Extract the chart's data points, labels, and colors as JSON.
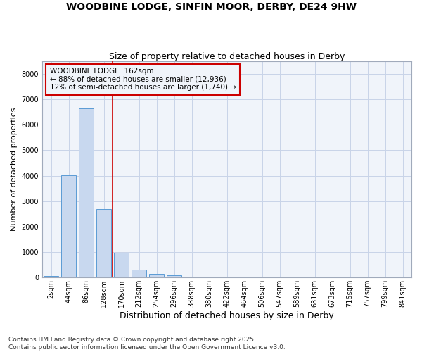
{
  "title_line1": "WOODBINE LODGE, SINFIN MOOR, DERBY, DE24 9HW",
  "title_line2": "Size of property relative to detached houses in Derby",
  "xlabel": "Distribution of detached houses by size in Derby",
  "ylabel": "Number of detached properties",
  "categories": [
    "2sqm",
    "44sqm",
    "86sqm",
    "128sqm",
    "170sqm",
    "212sqm",
    "254sqm",
    "296sqm",
    "338sqm",
    "380sqm",
    "422sqm",
    "464sqm",
    "506sqm",
    "547sqm",
    "589sqm",
    "631sqm",
    "673sqm",
    "715sqm",
    "757sqm",
    "799sqm",
    "841sqm"
  ],
  "values": [
    70,
    4020,
    6650,
    2680,
    980,
    320,
    130,
    100,
    0,
    0,
    0,
    0,
    0,
    0,
    0,
    0,
    0,
    0,
    0,
    0,
    0
  ],
  "bar_color": "#c8d8ef",
  "bar_edge_color": "#5b9bd5",
  "grid_color": "#c8d4e8",
  "background_color": "#ffffff",
  "plot_bg_color": "#f0f4fa",
  "vline_color": "#cc0000",
  "vline_x_idx": 3.5,
  "annotation_text": "WOODBINE LODGE: 162sqm\n← 88% of detached houses are smaller (12,936)\n12% of semi-detached houses are larger (1,740) →",
  "annotation_box_color": "#cc0000",
  "ylim": [
    0,
    8500
  ],
  "yticks": [
    0,
    1000,
    2000,
    3000,
    4000,
    5000,
    6000,
    7000,
    8000
  ],
  "footnote": "Contains HM Land Registry data © Crown copyright and database right 2025.\nContains public sector information licensed under the Open Government Licence v3.0.",
  "title_fontsize": 10,
  "subtitle_fontsize": 9,
  "ylabel_fontsize": 8,
  "xlabel_fontsize": 9,
  "tick_fontsize": 7,
  "annot_fontsize": 7.5,
  "footnote_fontsize": 6.5
}
